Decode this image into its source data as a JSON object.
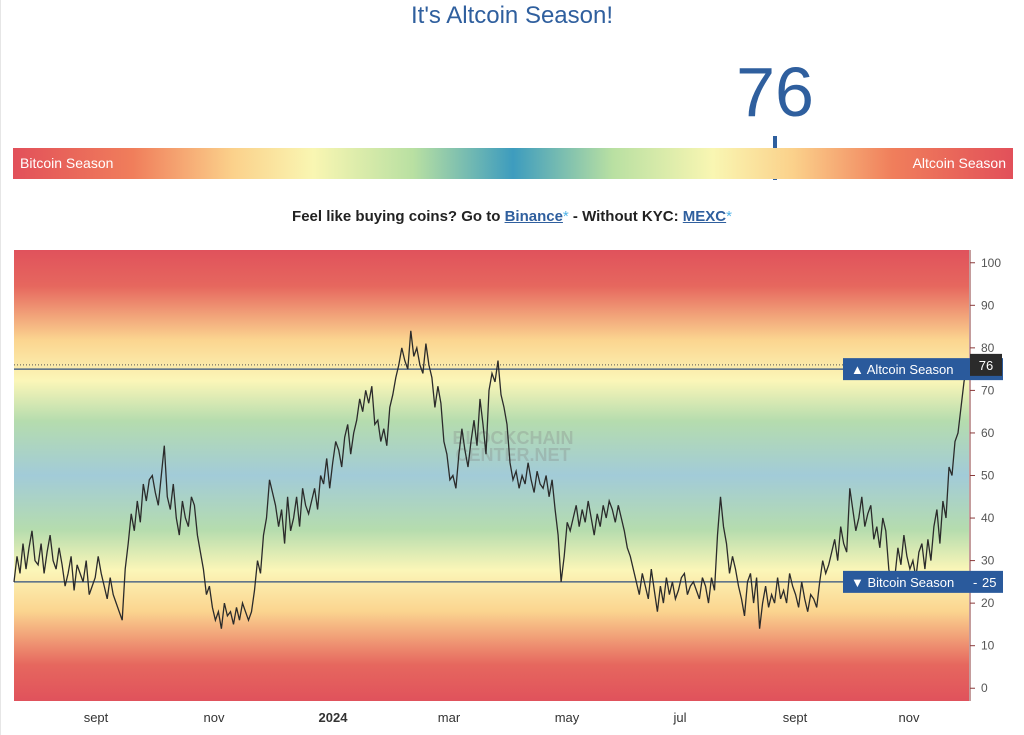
{
  "header": {
    "title": "It's Altcoin Season!",
    "value": "76"
  },
  "gauge": {
    "left_label": "Bitcoin Season",
    "right_label": "Altcoin Season",
    "value": 76
  },
  "promo": {
    "text1": "Feel like buying coins? Go to ",
    "link1": "Binance",
    "star": "*",
    "text2": " - Without KYC: ",
    "link2": "MEXC"
  },
  "chart_data": {
    "type": "line",
    "watermark": [
      "BLOCKCHAIN",
      "CENTER.NET"
    ],
    "x_tick_labels": [
      "sept",
      "nov",
      "2024",
      "mar",
      "may",
      "jul",
      "sept",
      "nov"
    ],
    "y_ticks": [
      0,
      10,
      20,
      30,
      40,
      50,
      60,
      70,
      80,
      90,
      100
    ],
    "ylim": [
      -3,
      103
    ],
    "current_value": 76,
    "thresholds": [
      {
        "label": "▲ Altcoin Season",
        "value": 75
      },
      {
        "label": "▼ Bitcoin Season",
        "value": 25
      }
    ],
    "series": [
      {
        "values": [
          25,
          31,
          27,
          34,
          28,
          33,
          37,
          30,
          29,
          34,
          27,
          32,
          36,
          30,
          28,
          33,
          29,
          24,
          27,
          31,
          23,
          29,
          27,
          25,
          30,
          22,
          24,
          26,
          31,
          27,
          24,
          21,
          26,
          22,
          20,
          18,
          16,
          28,
          34,
          41,
          37,
          44,
          39,
          48,
          44,
          49,
          50,
          46,
          43,
          50,
          57,
          45,
          42,
          48,
          40,
          36,
          44,
          40,
          38,
          45,
          43,
          36,
          32,
          28,
          22,
          24,
          19,
          16,
          18,
          14,
          20,
          17,
          18,
          15,
          19,
          16,
          20,
          18,
          16,
          18,
          23,
          30,
          27,
          36,
          40,
          49,
          46,
          43,
          38,
          42,
          34,
          45,
          37,
          40,
          45,
          38,
          47,
          43,
          41,
          44,
          47,
          42,
          50,
          48,
          54,
          47,
          53,
          58,
          56,
          52,
          59,
          62,
          55,
          60,
          63,
          68,
          65,
          70,
          67,
          71,
          62,
          63,
          58,
          61,
          57,
          66,
          69,
          73,
          76,
          80,
          77,
          75,
          84,
          78,
          80,
          76,
          74,
          81,
          76,
          73,
          66,
          71,
          67,
          58,
          55,
          49,
          50,
          47,
          55,
          61,
          56,
          52,
          58,
          63,
          57,
          68,
          62,
          55,
          70,
          74,
          72,
          77,
          69,
          66,
          62,
          53,
          49,
          51,
          47,
          50,
          48,
          53,
          49,
          46,
          51,
          48,
          47,
          50,
          45,
          49,
          42,
          36,
          25,
          31,
          39,
          37,
          40,
          43,
          38,
          42,
          39,
          44,
          40,
          36,
          41,
          38,
          43,
          40,
          44,
          42,
          39,
          43,
          40,
          37,
          33,
          31,
          28,
          25,
          22,
          27,
          24,
          21,
          28,
          23,
          18,
          24,
          20,
          26,
          22,
          25,
          21,
          23,
          26,
          27,
          22,
          24,
          25,
          23,
          21,
          26,
          24,
          20,
          26,
          23,
          36,
          45,
          38,
          34,
          27,
          31,
          28,
          24,
          21,
          17,
          25,
          27,
          20,
          26,
          14,
          20,
          24,
          19,
          22,
          20,
          26,
          21,
          23,
          20,
          27,
          24,
          22,
          19,
          25,
          21,
          18,
          22,
          21,
          19,
          25,
          30,
          27,
          29,
          32,
          35,
          30,
          38,
          34,
          32,
          47,
          42,
          37,
          40,
          45,
          38,
          41,
          43,
          35,
          38,
          33,
          40,
          37,
          28,
          24,
          26,
          33,
          29,
          36,
          31,
          28,
          30,
          26,
          32,
          34,
          28,
          35,
          30,
          38,
          42,
          34,
          44,
          40,
          52,
          50,
          58,
          60,
          66,
          72,
          76
        ]
      }
    ]
  }
}
